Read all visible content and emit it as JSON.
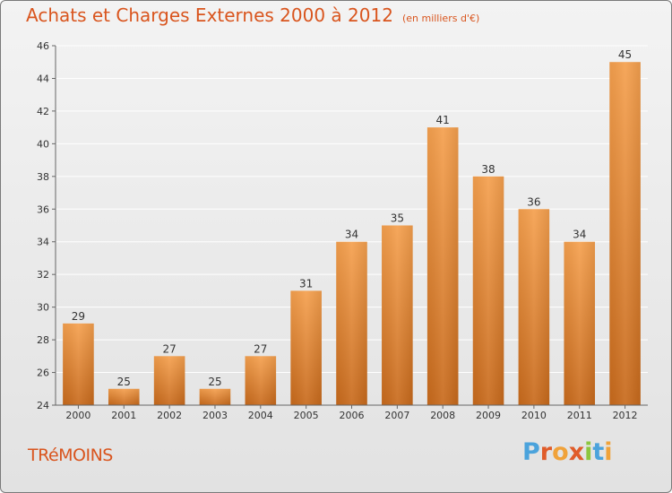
{
  "header": {
    "title": "Achats et Charges Externes 2000 à 2012",
    "subtitle": "(en milliers d'€)"
  },
  "footer": {
    "commune": "TRéMOINS",
    "logo_letters": [
      "P",
      "r",
      "o",
      "x",
      "i",
      "t",
      "i"
    ]
  },
  "colors": {
    "bar_top": "#f5a04e",
    "bar_bottom": "#c86a1c",
    "title": "#d9551e",
    "axis": "#666666",
    "grid": "#ffffff"
  },
  "chart_data": {
    "type": "bar",
    "title": "Achats et Charges Externes 2000 à 2012",
    "subtitle": "(en milliers d'€)",
    "categories": [
      "2000",
      "2001",
      "2002",
      "2003",
      "2004",
      "2005",
      "2006",
      "2007",
      "2008",
      "2009",
      "2010",
      "2011",
      "2012"
    ],
    "values": [
      29,
      25,
      27,
      25,
      27,
      31,
      34,
      35,
      41,
      38,
      36,
      34,
      45
    ],
    "ylim": [
      24,
      46
    ],
    "yticks": [
      24,
      26,
      28,
      30,
      32,
      34,
      36,
      38,
      40,
      42,
      44,
      46
    ],
    "grid": true,
    "data_labels": true
  }
}
